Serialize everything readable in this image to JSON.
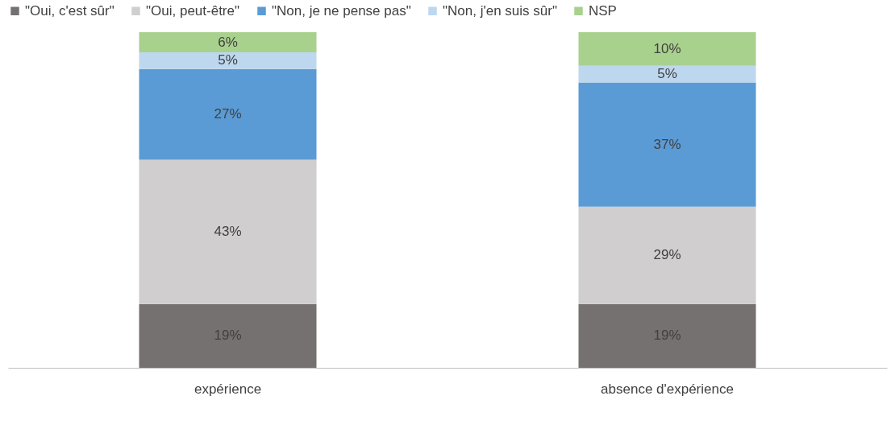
{
  "chart_data": {
    "type": "bar",
    "stacked": true,
    "legend": "top",
    "categories": [
      "expérience",
      "absence d'expérience"
    ],
    "series": [
      {
        "name": "\"Oui, c'est sûr\"",
        "color": "#767171",
        "values": [
          19,
          19
        ],
        "value_labels": [
          "19%",
          "19%"
        ]
      },
      {
        "name": "\"Oui, peut-être\"",
        "color": "#d0cece",
        "values": [
          43,
          29
        ],
        "value_labels": [
          "43%",
          "29%"
        ]
      },
      {
        "name": "\"Non, je ne pense pas\"",
        "color": "#5b9bd5",
        "values": [
          27,
          37
        ],
        "value_labels": [
          "27%",
          "37%"
        ]
      },
      {
        "name": "\"Non, j'en suis sûr\"",
        "color": "#bdd7ee",
        "values": [
          5,
          5
        ],
        "value_labels": [
          "5%",
          "5%"
        ]
      },
      {
        "name": "NSP",
        "color": "#a9d18e",
        "values": [
          6,
          10
        ],
        "value_labels": [
          "6%",
          "10%"
        ]
      }
    ]
  }
}
